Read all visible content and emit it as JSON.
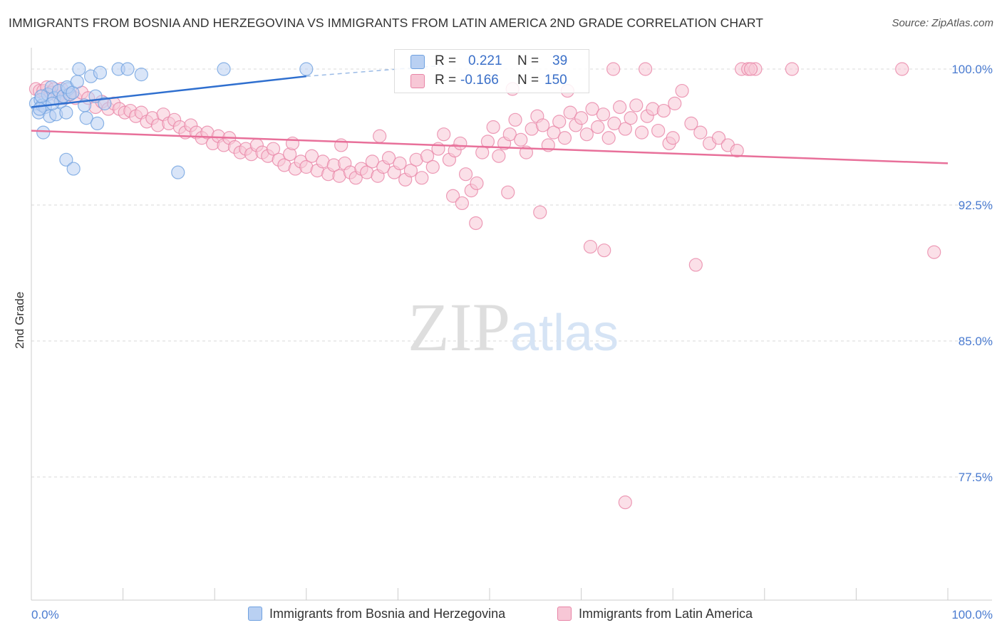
{
  "chart_data": {
    "type": "scatter",
    "title": "IMMIGRANTS FROM BOSNIA AND HERZEGOVINA VS IMMIGRANTS FROM LATIN AMERICA 2ND GRADE CORRELATION CHART",
    "source": "Source: ZipAtlas.com",
    "watermark": "ZIPatlas",
    "ylabel": "2nd Grade",
    "xlabel": "",
    "xlim": [
      0,
      100
    ],
    "ylim": [
      70,
      100.8
    ],
    "x_tick_labels": [
      "0.0%",
      "100.0%"
    ],
    "y_ticks": [
      {
        "value": 100.0,
        "label": "100.0%"
      },
      {
        "value": 92.5,
        "label": "92.5%"
      },
      {
        "value": 85.0,
        "label": "85.0%"
      },
      {
        "value": 77.5,
        "label": "77.5%"
      }
    ],
    "legend": {
      "rows": [
        {
          "r_label": "R =",
          "r_value": "0.221",
          "n_label": "N =",
          "n_value": "39"
        },
        {
          "r_label": "R =",
          "r_value": "-0.166",
          "n_label": "N =",
          "n_value": "150"
        }
      ]
    },
    "series": [
      {
        "name": "Immigrants from Bosnia and Herzegovina",
        "color": "#6fa1e0",
        "fill": "#b9d0f2",
        "trend": {
          "x": [
            0,
            30
          ],
          "y": [
            97.9,
            99.6
          ],
          "dashed_to": [
            45,
            100.2
          ]
        },
        "points": [
          [
            0.5,
            98.1
          ],
          [
            0.8,
            97.6
          ],
          [
            1.0,
            98.3
          ],
          [
            1.2,
            98.0
          ],
          [
            1.5,
            97.9
          ],
          [
            1.8,
            98.6
          ],
          [
            2.0,
            97.4
          ],
          [
            2.2,
            99.0
          ],
          [
            2.5,
            98.4
          ],
          [
            2.7,
            97.5
          ],
          [
            3.0,
            98.8
          ],
          [
            3.2,
            98.2
          ],
          [
            3.5,
            98.5
          ],
          [
            3.8,
            97.6
          ],
          [
            4.0,
            98.9
          ],
          [
            4.2,
            98.6
          ],
          [
            3.9,
            99.0
          ],
          [
            4.5,
            98.7
          ],
          [
            5.0,
            99.3
          ],
          [
            5.2,
            100.0
          ],
          [
            5.8,
            98.0
          ],
          [
            6.0,
            97.3
          ],
          [
            6.5,
            99.6
          ],
          [
            7.0,
            98.5
          ],
          [
            7.2,
            97.0
          ],
          [
            7.5,
            99.8
          ],
          [
            8.0,
            98.1
          ],
          [
            9.5,
            100.0
          ],
          [
            10.5,
            100.0
          ],
          [
            12.0,
            99.7
          ],
          [
            21.0,
            100.0
          ],
          [
            30.0,
            100.0
          ],
          [
            1.3,
            96.5
          ],
          [
            3.8,
            95.0
          ],
          [
            4.6,
            94.5
          ],
          [
            16.0,
            94.3
          ],
          [
            1.1,
            98.5
          ],
          [
            2.3,
            98.1
          ],
          [
            0.9,
            97.8
          ]
        ]
      },
      {
        "name": "Immigrants from Latin America",
        "color": "#e884a6",
        "fill": "#f7c7d6",
        "trend": {
          "x": [
            0,
            100
          ],
          "y": [
            96.6,
            94.8
          ]
        },
        "points": [
          [
            0.5,
            98.9
          ],
          [
            0.9,
            98.8
          ],
          [
            1.3,
            98.8
          ],
          [
            1.7,
            99.0
          ],
          [
            2.1,
            98.7
          ],
          [
            2.5,
            98.9
          ],
          [
            2.9,
            98.5
          ],
          [
            3.3,
            98.9
          ],
          [
            3.7,
            98.4
          ],
          [
            4.1,
            98.6
          ],
          [
            4.8,
            98.4
          ],
          [
            5.5,
            98.7
          ],
          [
            6.2,
            98.4
          ],
          [
            7.0,
            97.9
          ],
          [
            7.7,
            98.2
          ],
          [
            8.4,
            97.8
          ],
          [
            9.0,
            98.1
          ],
          [
            9.6,
            97.8
          ],
          [
            10.2,
            97.6
          ],
          [
            10.8,
            97.7
          ],
          [
            11.4,
            97.4
          ],
          [
            12.0,
            97.6
          ],
          [
            12.6,
            97.1
          ],
          [
            13.2,
            97.3
          ],
          [
            13.8,
            96.9
          ],
          [
            14.4,
            97.5
          ],
          [
            15.0,
            97.0
          ],
          [
            15.6,
            97.2
          ],
          [
            16.2,
            96.8
          ],
          [
            16.8,
            96.5
          ],
          [
            17.4,
            96.9
          ],
          [
            18.0,
            96.5
          ],
          [
            18.6,
            96.2
          ],
          [
            19.2,
            96.5
          ],
          [
            19.8,
            95.9
          ],
          [
            20.4,
            96.3
          ],
          [
            21.0,
            95.8
          ],
          [
            21.6,
            96.2
          ],
          [
            22.2,
            95.7
          ],
          [
            22.8,
            95.4
          ],
          [
            23.4,
            95.6
          ],
          [
            24.0,
            95.3
          ],
          [
            24.6,
            95.8
          ],
          [
            25.2,
            95.4
          ],
          [
            25.8,
            95.2
          ],
          [
            26.4,
            95.6
          ],
          [
            27.0,
            95.0
          ],
          [
            27.6,
            94.7
          ],
          [
            28.2,
            95.3
          ],
          [
            28.8,
            94.5
          ],
          [
            29.4,
            94.9
          ],
          [
            30.0,
            94.6
          ],
          [
            30.6,
            95.2
          ],
          [
            31.2,
            94.4
          ],
          [
            31.8,
            94.9
          ],
          [
            32.4,
            94.2
          ],
          [
            33.0,
            94.7
          ],
          [
            33.6,
            94.1
          ],
          [
            34.2,
            94.8
          ],
          [
            34.8,
            94.3
          ],
          [
            35.4,
            94.0
          ],
          [
            36.0,
            94.5
          ],
          [
            36.6,
            94.3
          ],
          [
            37.2,
            94.9
          ],
          [
            37.8,
            94.1
          ],
          [
            38.4,
            94.6
          ],
          [
            39.0,
            95.1
          ],
          [
            39.6,
            94.3
          ],
          [
            40.2,
            94.8
          ],
          [
            40.8,
            93.9
          ],
          [
            41.4,
            94.4
          ],
          [
            42.0,
            95.0
          ],
          [
            42.6,
            94.0
          ],
          [
            43.2,
            95.2
          ],
          [
            43.8,
            94.6
          ],
          [
            44.4,
            95.6
          ],
          [
            45.0,
            96.4
          ],
          [
            45.6,
            95.0
          ],
          [
            46.2,
            95.5
          ],
          [
            46.8,
            95.9
          ],
          [
            47.4,
            94.2
          ],
          [
            48.0,
            93.3
          ],
          [
            48.6,
            93.7
          ],
          [
            49.2,
            95.4
          ],
          [
            49.8,
            96.0
          ],
          [
            50.4,
            96.8
          ],
          [
            51.0,
            95.2
          ],
          [
            51.6,
            95.9
          ],
          [
            52.2,
            96.4
          ],
          [
            52.8,
            97.2
          ],
          [
            53.4,
            96.1
          ],
          [
            54.0,
            95.4
          ],
          [
            54.6,
            96.7
          ],
          [
            55.2,
            97.4
          ],
          [
            55.8,
            96.9
          ],
          [
            56.4,
            95.8
          ],
          [
            57.0,
            96.5
          ],
          [
            57.6,
            97.1
          ],
          [
            58.2,
            96.2
          ],
          [
            58.8,
            97.6
          ],
          [
            59.4,
            96.9
          ],
          [
            60.0,
            97.3
          ],
          [
            60.6,
            96.4
          ],
          [
            61.2,
            97.8
          ],
          [
            61.8,
            96.8
          ],
          [
            62.4,
            97.5
          ],
          [
            63.0,
            96.2
          ],
          [
            63.6,
            97.0
          ],
          [
            64.2,
            97.9
          ],
          [
            64.8,
            96.7
          ],
          [
            65.4,
            97.3
          ],
          [
            66.0,
            98.0
          ],
          [
            66.6,
            96.5
          ],
          [
            67.2,
            97.4
          ],
          [
            67.8,
            97.8
          ],
          [
            68.4,
            96.6
          ],
          [
            69.0,
            97.7
          ],
          [
            69.6,
            95.9
          ],
          [
            70.2,
            98.1
          ],
          [
            71.0,
            98.8
          ],
          [
            72.0,
            97.0
          ],
          [
            73.0,
            96.5
          ],
          [
            74.0,
            95.9
          ],
          [
            75.0,
            96.2
          ],
          [
            76.0,
            95.8
          ],
          [
            77.0,
            95.5
          ],
          [
            46.0,
            93.0
          ],
          [
            47.0,
            92.6
          ],
          [
            48.5,
            91.5
          ],
          [
            52.0,
            93.2
          ],
          [
            55.5,
            92.1
          ],
          [
            61.0,
            90.2
          ],
          [
            62.5,
            90.0
          ],
          [
            72.5,
            89.2
          ],
          [
            98.5,
            89.9
          ],
          [
            64.8,
            76.1
          ],
          [
            63.5,
            100.0
          ],
          [
            67.0,
            100.0
          ],
          [
            77.5,
            100.0
          ],
          [
            78.2,
            100.0
          ],
          [
            79.0,
            100.0
          ],
          [
            83.0,
            100.0
          ],
          [
            95.0,
            100.0
          ],
          [
            78.5,
            100.0
          ],
          [
            70.0,
            96.2
          ],
          [
            52.5,
            98.9
          ],
          [
            58.5,
            98.8
          ],
          [
            38.0,
            96.3
          ],
          [
            33.8,
            95.8
          ],
          [
            28.5,
            95.9
          ]
        ]
      }
    ],
    "bottom_legend": [
      "Immigrants from Bosnia and Herzegovina",
      "Immigrants from Latin America"
    ]
  }
}
